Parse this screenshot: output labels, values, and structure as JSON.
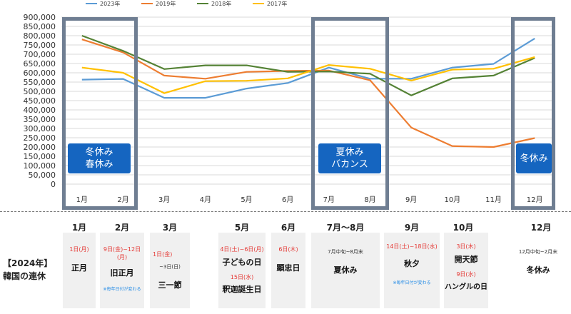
{
  "chart_data": {
    "type": "line",
    "categories": [
      "1月",
      "2月",
      "3月",
      "4月",
      "5月",
      "6月",
      "7月",
      "8月",
      "9月",
      "10月",
      "11月",
      "12月"
    ],
    "ylim": [
      0,
      900000
    ],
    "yticks": [
      "0",
      "50,000",
      "100,000",
      "150,000",
      "200,000",
      "250,000",
      "300,000",
      "350,000",
      "400,000",
      "450,000",
      "500,000",
      "550,000",
      "600,000",
      "650,000",
      "700,000",
      "750,000",
      "800,000",
      "850,000",
      "900,000"
    ],
    "legend_position": "top",
    "series": [
      {
        "name": "2023年",
        "color": "#5b9bd5",
        "values": [
          563000,
          567000,
          465000,
          465000,
          515000,
          545000,
          628000,
          568000,
          568000,
          628000,
          648000,
          785000
        ]
      },
      {
        "name": "2019年",
        "color": "#ed7d31",
        "values": [
          780000,
          710000,
          585000,
          568000,
          605000,
          610000,
          612000,
          560000,
          305000,
          205000,
          200000,
          248000
        ]
      },
      {
        "name": "2018年",
        "color": "#548235",
        "values": [
          800000,
          718000,
          620000,
          640000,
          640000,
          605000,
          607000,
          595000,
          478000,
          570000,
          585000,
          680000
        ]
      },
      {
        "name": "2017年",
        "color": "#ffc000",
        "values": [
          628000,
          600000,
          490000,
          555000,
          557000,
          570000,
          642000,
          622000,
          558000,
          617000,
          622000,
          685000
        ]
      }
    ],
    "annotations": [
      {
        "lines": [
          "冬休み",
          "春休み"
        ]
      },
      {
        "lines": [
          "夏休み",
          "バカンス"
        ]
      },
      {
        "lines": [
          "冬休み"
        ]
      }
    ]
  },
  "holiday_title": [
    "【2024年】",
    "韓国の連休"
  ],
  "holidays": [
    {
      "month": "1月",
      "date": "1日(月)",
      "sub": "",
      "name": "正月",
      "note": "",
      "date2": "",
      "name2": ""
    },
    {
      "month": "2月",
      "date": "9日(金)~12日(月)",
      "sub": "",
      "name": "旧正月",
      "note": "※毎年日付が変わる",
      "date2": "",
      "name2": ""
    },
    {
      "month": "3月",
      "date": "1日(金)",
      "sub": "~3日(日)",
      "name": "三一節",
      "note": "",
      "date2": "",
      "name2": ""
    },
    {
      "month": "5月",
      "date": "4日(土)~6日(月)",
      "sub": "",
      "name": "子どもの日",
      "note": "",
      "date2": "15日(水)",
      "name2": "釈迦誕生日"
    },
    {
      "month": "6月",
      "date": "6日(木)",
      "sub": "",
      "name": "顕忠日",
      "note": "",
      "date2": "",
      "name2": ""
    },
    {
      "month": "7月～8月",
      "date": "",
      "sub": "7月中旬~8月末",
      "name": "夏休み",
      "note": "",
      "date2": "",
      "name2": ""
    },
    {
      "month": "9月",
      "date": "14日(土)~18日(水)",
      "sub": "",
      "name": "秋夕",
      "note": "※毎年日付が変わる",
      "date2": "",
      "name2": ""
    },
    {
      "month": "10月",
      "date": "3日(木)",
      "sub": "",
      "name": "開天節",
      "note": "",
      "date2": "9日(水)",
      "name2": "ハングルの日"
    },
    {
      "month": "12月",
      "date": "",
      "sub": "12月中旬~2月末",
      "name": "冬休み",
      "note": "",
      "date2": "",
      "name2": ""
    }
  ]
}
